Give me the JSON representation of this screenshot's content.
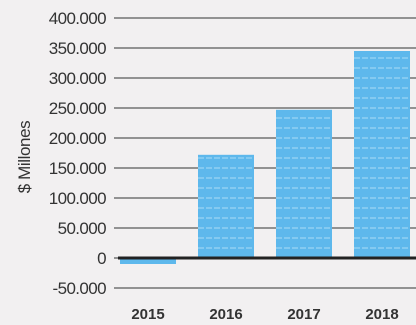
{
  "chart_data": {
    "type": "bar",
    "title": "",
    "xlabel": "",
    "ylabel": "$ Millones",
    "categories": [
      "2015",
      "2016",
      "2017",
      "2018"
    ],
    "values": [
      -10000,
      172000,
      247000,
      345000
    ],
    "ylim": [
      -50000,
      400000
    ],
    "yticks": [
      400000,
      350000,
      300000,
      250000,
      200000,
      150000,
      100000,
      50000,
      0,
      -50000
    ],
    "ytick_labels": [
      "400.000",
      "350.000",
      "300.000",
      "250.000",
      "200.000",
      "150.000",
      "100.000",
      "50.000",
      "0",
      "-50.000"
    ],
    "grid": true,
    "legend": "none",
    "colors": {
      "bar": "#5eb8ec",
      "bar_stripe": "#a9dbf6",
      "grid": "#333333",
      "zero_line": "#222222",
      "background": "#f2f0f1"
    }
  }
}
